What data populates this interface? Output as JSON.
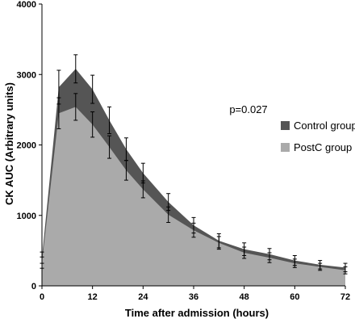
{
  "chart_data": {
    "type": "area",
    "title": "",
    "xlabel": "Time after admission (hours)",
    "ylabel": "CK AUC (Arbitrary units)",
    "xlim": [
      0,
      72
    ],
    "ylim": [
      0,
      4000
    ],
    "x_ticks": [
      0,
      12,
      24,
      36,
      48,
      60,
      72
    ],
    "y_ticks": [
      0,
      1000,
      2000,
      3000,
      4000
    ],
    "grid": false,
    "legend_position": "right",
    "annotation": "p=0.027",
    "x": [
      0,
      4,
      8,
      12,
      16,
      20,
      24,
      30,
      36,
      42,
      48,
      54,
      60,
      66,
      72
    ],
    "series": [
      {
        "name": "Control group",
        "color": "#555555",
        "values": [
          400,
          2820,
          3080,
          2790,
          2350,
          1940,
          1600,
          1190,
          860,
          640,
          520,
          450,
          360,
          300,
          260
        ],
        "errors": [
          80,
          240,
          200,
          200,
          190,
          160,
          140,
          120,
          110,
          100,
          90,
          80,
          70,
          60,
          60
        ]
      },
      {
        "name": "PostC group",
        "color": "#aaaaaa",
        "values": [
          330,
          2450,
          2540,
          2290,
          1970,
          1640,
          1370,
          1010,
          790,
          610,
          470,
          400,
          320,
          270,
          220
        ],
        "errors": [
          80,
          220,
          190,
          180,
          160,
          140,
          120,
          110,
          100,
          90,
          80,
          70,
          60,
          50,
          50
        ]
      }
    ]
  }
}
